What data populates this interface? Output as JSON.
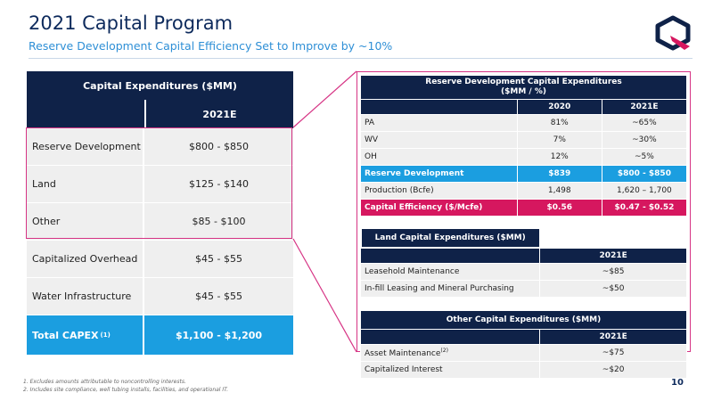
{
  "header": {
    "title": "2021 Capital Program",
    "subtitle": "Reserve Development Capital Efficiency Set to Improve by ~10%"
  },
  "left_table": {
    "title": "Capital Expenditures ($MM)",
    "col_header": "2021E",
    "rows": [
      {
        "label": "Reserve Development",
        "value": "$800 - $850"
      },
      {
        "label": "Land",
        "value": "$125 - $140"
      },
      {
        "label": "Other",
        "value": "$85 - $100"
      },
      {
        "label": "Capitalized Overhead",
        "value": "$45 - $55"
      },
      {
        "label": "Water Infrastructure",
        "value": "$45 - $55"
      }
    ],
    "total": {
      "label": "Total CAPEX",
      "sup": "(1)",
      "value": "$1,100 - $1,200"
    }
  },
  "reserve_table": {
    "title_line1": "Reserve Development Capital Expenditures",
    "title_line2": "($MM / %)",
    "col1": "2020",
    "col2": "2021E",
    "rows": [
      {
        "label": "PA",
        "v1": "81%",
        "v2": "~65%"
      },
      {
        "label": "WV",
        "v1": "7%",
        "v2": "~30%"
      },
      {
        "label": "OH",
        "v1": "12%",
        "v2": "~5%"
      }
    ],
    "total": {
      "label": "Reserve Development",
      "v1": "$839",
      "v2": "$800 - $850"
    },
    "production": {
      "label": "Production (Bcfe)",
      "v1": "1,498",
      "v2": "1,620 – 1,700"
    },
    "efficiency": {
      "label": "Capital Efficiency ($/Mcfe)",
      "v1": "$0.56",
      "v2": "$0.47 - $0.52"
    }
  },
  "land_table": {
    "title": "Land Capital Expenditures ($MM)",
    "col": "2021E",
    "rows": [
      {
        "label": "Leasehold Maintenance",
        "value": "~$85"
      },
      {
        "label": "In-fill Leasing and Mineral Purchasing",
        "value": "~$50"
      }
    ]
  },
  "other_table": {
    "title": "Other Capital Expenditures ($MM)",
    "col": "2021E",
    "rows": [
      {
        "label": "Asset Maintenance",
        "sup": "(2)",
        "value": "~$75"
      },
      {
        "label": "Capitalized Interest",
        "sup": "",
        "value": "~$20"
      }
    ]
  },
  "footnotes": {
    "n1": "1.     Excludes amounts attributable to noncontrolling interests.",
    "n2": "2.     Includes site compliance, well tubing installs, facilities, and operational IT."
  },
  "page_number": "10",
  "colors": {
    "navy": "#0f2248",
    "blue": "#1b9ee0",
    "pink": "#d6175f",
    "accent": "#d63384"
  },
  "icons": {
    "logo": "company-logo-icon"
  }
}
